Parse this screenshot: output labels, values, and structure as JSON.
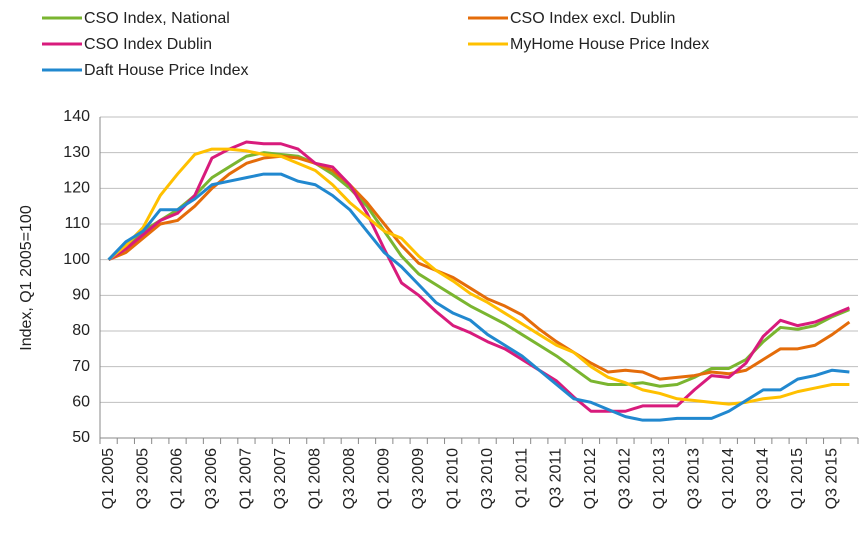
{
  "chart_data": {
    "type": "line",
    "y_label": "Index, Q1 2005=100",
    "categories": [
      "Q1 2005",
      null,
      "Q3 2005",
      null,
      "Q1 2006",
      null,
      "Q3 2006",
      null,
      "Q1 2007",
      null,
      "Q3 2007",
      null,
      "Q1 2008",
      null,
      "Q3 2008",
      null,
      "Q1 2009",
      null,
      "Q3 2009",
      null,
      "Q1 2010",
      null,
      "Q3 2010",
      null,
      "Q1 2011",
      null,
      "Q3 2011",
      null,
      "Q1 2012",
      null,
      "Q3 2012",
      null,
      "Q1 2013",
      null,
      "Q3 2013",
      null,
      "Q1 2014",
      null,
      "Q3 2014",
      null,
      "Q1 2015",
      null,
      "Q3 2015",
      null
    ],
    "series": [
      {
        "name": "CSO Index, National",
        "color": "#7ab530",
        "values": [
          100,
          104,
          108,
          111,
          114,
          118,
          123,
          126,
          129,
          130,
          129.5,
          129,
          127,
          124,
          120,
          115,
          108,
          101,
          96,
          93,
          90,
          87,
          84.5,
          82,
          79,
          76,
          73,
          69.5,
          66,
          65,
          65,
          65.5,
          64.5,
          65,
          67,
          69.5,
          69.5,
          72,
          77,
          81,
          80.5,
          81.5,
          84,
          86
        ]
      },
      {
        "name": "CSO Index excl. Dublin",
        "color": "#e46c0a",
        "values": [
          100,
          102,
          106,
          110,
          111,
          115,
          120,
          124,
          127,
          128.5,
          129,
          128.5,
          127,
          125,
          121,
          116,
          110,
          104,
          99,
          97,
          95,
          92,
          89,
          87,
          84.5,
          80.5,
          77,
          74,
          71,
          68.5,
          69,
          68.5,
          66.5,
          67,
          67.5,
          68.5,
          68,
          69,
          72,
          75,
          75,
          76,
          79,
          82.5
        ]
      },
      {
        "name": "CSO Index Dublin",
        "color": "#d81b7c",
        "values": [
          100,
          103,
          107,
          111,
          113,
          118,
          128.5,
          131,
          133,
          132.5,
          132.5,
          131,
          127,
          126,
          121,
          113,
          103,
          93.5,
          90,
          85.5,
          81.5,
          79.5,
          77,
          75,
          72,
          69,
          66,
          61.5,
          57.5,
          57.5,
          57.5,
          59,
          59,
          59,
          63.5,
          67.5,
          67,
          71,
          78.5,
          83,
          81.5,
          82.5,
          84.5,
          86.5
        ]
      },
      {
        "name": "MyHome House Price Index",
        "color": "#ffc000",
        "values": [
          100,
          104,
          109,
          118,
          124,
          129.5,
          131,
          131,
          130.5,
          129.5,
          129,
          127,
          125,
          121,
          116,
          112,
          108,
          106,
          101,
          97,
          94,
          90.5,
          88,
          85,
          82,
          79,
          76,
          74,
          70,
          67,
          65.5,
          63.5,
          62.5,
          61,
          60.5,
          60,
          59.5,
          60,
          61,
          61.5,
          63,
          64,
          65,
          65
        ]
      },
      {
        "name": "Daft House Price Index",
        "color": "#2188cf",
        "values": [
          100,
          105,
          108,
          114,
          114,
          117,
          121,
          122,
          123,
          124,
          124,
          122,
          121,
          118,
          114,
          108,
          102,
          98,
          93,
          88,
          85,
          83,
          79,
          76,
          73,
          69,
          65,
          61,
          60,
          58,
          56,
          55,
          55,
          55.5,
          55.5,
          55.5,
          57.5,
          60.5,
          63.5,
          63.5,
          66.5,
          67.5,
          69,
          68.5
        ]
      }
    ],
    "ylim": [
      50,
      140
    ],
    "yticks": [
      50,
      60,
      70,
      80,
      90,
      100,
      110,
      120,
      130,
      140
    ],
    "grid": true
  }
}
